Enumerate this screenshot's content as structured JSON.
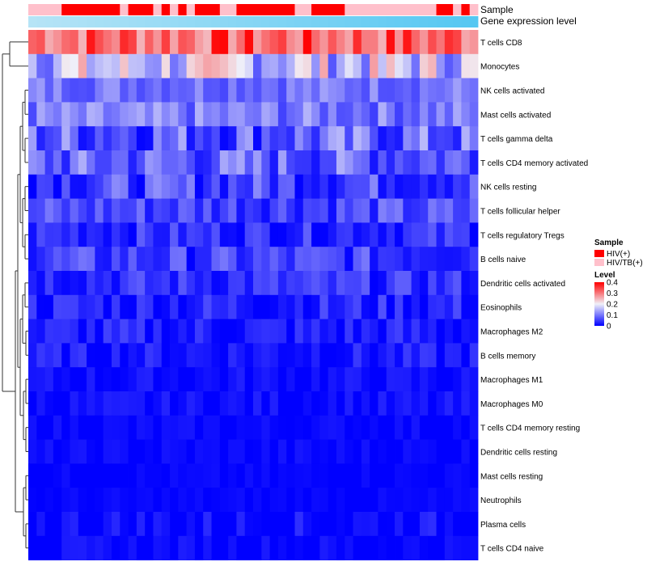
{
  "chart_data": {
    "type": "heatmap",
    "title": "",
    "n_samples": 54,
    "value_range": [
      0,
      0.4
    ],
    "colors": {
      "low": "#0000ff",
      "mid": "#f0f0f8",
      "high": "#ff0000",
      "sample_hiv": "#ff0000",
      "sample_hivtb": "#ffc0cb",
      "gene_expr_start": "#b6e4f6",
      "gene_expr_end": "#55c7f2",
      "dendrogram": "#333333"
    },
    "annotations": {
      "sample_label": "Sample",
      "gene_expression_label": "Gene expression level",
      "sample_groups": [
        "P",
        "P",
        "P",
        "P",
        "R",
        "R",
        "R",
        "R",
        "R",
        "R",
        "R",
        "P",
        "R",
        "R",
        "R",
        "P",
        "R",
        "P",
        "R",
        "P",
        "R",
        "R",
        "R",
        "P",
        "P",
        "R",
        "R",
        "R",
        "R",
        "R",
        "R",
        "R",
        "P",
        "P",
        "R",
        "R",
        "R",
        "R",
        "P",
        "P",
        "P",
        "P",
        "P",
        "P",
        "P",
        "P",
        "P",
        "P",
        "P",
        "R",
        "R",
        "P",
        "R",
        "P"
      ]
    },
    "legend": {
      "sample_title": "Sample",
      "sample_items": [
        "HIV(+)",
        "HIV/TB(+)"
      ],
      "level_title": "Level",
      "level_ticks": [
        "0.4",
        "0.3",
        "0.2",
        "0.1",
        "0"
      ],
      "level_tick_values": [
        0.4,
        0.3,
        0.2,
        0.1,
        0
      ]
    },
    "rows": [
      {
        "name": "T cells CD8",
        "base": 0.32,
        "spread": 0.08
      },
      {
        "name": "Monocytes",
        "base": 0.17,
        "spread": 0.1
      },
      {
        "name": "NK cells activated",
        "base": 0.1,
        "spread": 0.04
      },
      {
        "name": "Mast cells activated",
        "base": 0.1,
        "spread": 0.05
      },
      {
        "name": "T cells gamma delta",
        "base": 0.08,
        "spread": 0.08
      },
      {
        "name": "T cells CD4 memory activated",
        "base": 0.08,
        "spread": 0.07
      },
      {
        "name": "NK cells resting",
        "base": 0.06,
        "spread": 0.06
      },
      {
        "name": "T cells follicular helper",
        "base": 0.06,
        "spread": 0.05
      },
      {
        "name": "T cells regulatory  Tregs",
        "base": 0.04,
        "spread": 0.04
      },
      {
        "name": "B cells naive",
        "base": 0.05,
        "spread": 0.05
      },
      {
        "name": "Dendritic cells activated",
        "base": 0.04,
        "spread": 0.04
      },
      {
        "name": "Eosinophils",
        "base": 0.03,
        "spread": 0.04
      },
      {
        "name": "Macrophages M2",
        "base": 0.02,
        "spread": 0.04
      },
      {
        "name": "B cells memory",
        "base": 0.02,
        "spread": 0.03
      },
      {
        "name": "Macrophages M1",
        "base": 0.01,
        "spread": 0.02
      },
      {
        "name": "Macrophages M0",
        "base": 0.01,
        "spread": 0.02
      },
      {
        "name": "T cells CD4 memory resting",
        "base": 0.005,
        "spread": 0.015
      },
      {
        "name": "Dendritic cells resting",
        "base": 0.005,
        "spread": 0.015
      },
      {
        "name": "Mast cells resting",
        "base": 0.003,
        "spread": 0.01
      },
      {
        "name": "Neutrophils",
        "base": 0.003,
        "spread": 0.01
      },
      {
        "name": "Plasma cells",
        "base": 0.01,
        "spread": 0.03
      },
      {
        "name": "T cells CD4 naive",
        "base": 0.005,
        "spread": 0.02
      }
    ]
  }
}
